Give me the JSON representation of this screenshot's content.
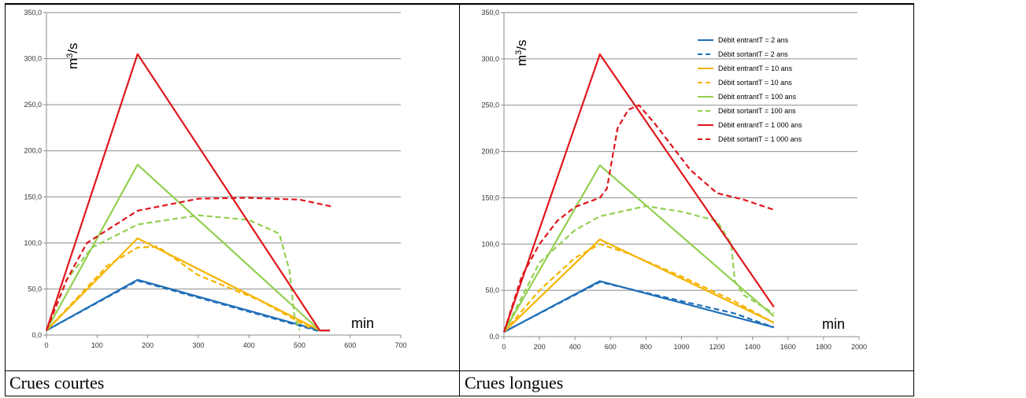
{
  "panels": [
    {
      "caption": "Crues courtes"
    },
    {
      "caption": "Crues longues"
    }
  ],
  "chart_data": [
    {
      "type": "line",
      "unit_label": "m3/s",
      "unit_base": "m",
      "unit_exp": "3",
      "unit_suffix": "/s",
      "x_unit_label": "min",
      "xlim": [
        0,
        700
      ],
      "ylim": [
        0,
        350
      ],
      "xticks": [
        0,
        100,
        200,
        300,
        400,
        500,
        600,
        700
      ],
      "yticks": [
        0.0,
        50.0,
        100.0,
        150.0,
        200.0,
        250.0,
        300.0,
        350.0
      ],
      "ytick_labels": [
        "0,0",
        "50,0",
        "100,0",
        "150,0",
        "200,0",
        "250,0",
        "300,0",
        "350,0"
      ],
      "grid": "horizontal",
      "series": [
        {
          "color": "#1f6fb8",
          "dash": false,
          "points": [
            [
              0,
              5
            ],
            [
              180,
              60
            ],
            [
              540,
              5
            ],
            [
              560,
              5
            ]
          ]
        },
        {
          "color": "#1f6fb8",
          "dash": true,
          "points": [
            [
              0,
              5
            ],
            [
              180,
              59
            ],
            [
              540,
              4
            ]
          ]
        },
        {
          "color": "#f5b400",
          "dash": false,
          "points": [
            [
              0,
              5
            ],
            [
              180,
              105
            ],
            [
              540,
              5
            ]
          ]
        },
        {
          "color": "#f5b400",
          "dash": true,
          "points": [
            [
              0,
              5
            ],
            [
              60,
              40
            ],
            [
              120,
              75
            ],
            [
              180,
              95
            ],
            [
              220,
              96
            ],
            [
              300,
              65
            ],
            [
              420,
              38
            ],
            [
              520,
              8
            ]
          ]
        },
        {
          "color": "#92d050",
          "dash": false,
          "points": [
            [
              0,
              5
            ],
            [
              180,
              185
            ],
            [
              540,
              5
            ]
          ]
        },
        {
          "color": "#92d050",
          "dash": true,
          "points": [
            [
              0,
              5
            ],
            [
              40,
              60
            ],
            [
              90,
              95
            ],
            [
              180,
              120
            ],
            [
              300,
              130
            ],
            [
              400,
              125
            ],
            [
              460,
              110
            ],
            [
              480,
              70
            ],
            [
              490,
              20
            ],
            [
              500,
              5
            ]
          ]
        },
        {
          "color": "#e0161b",
          "dash": false,
          "points": [
            [
              0,
              5
            ],
            [
              180,
              305
            ],
            [
              540,
              5
            ],
            [
              560,
              5
            ]
          ]
        },
        {
          "color": "#e0161b",
          "dash": true,
          "points": [
            [
              0,
              5
            ],
            [
              40,
              60
            ],
            [
              80,
              100
            ],
            [
              180,
              135
            ],
            [
              300,
              148
            ],
            [
              400,
              149
            ],
            [
              500,
              147
            ],
            [
              560,
              140
            ],
            [
              560,
              137
            ]
          ]
        }
      ]
    },
    {
      "type": "line",
      "unit_label": "m3/s",
      "unit_base": "m",
      "unit_exp": "3",
      "unit_suffix": "/s",
      "x_unit_label": "min",
      "xlim": [
        0,
        2000
      ],
      "ylim": [
        0,
        350
      ],
      "xticks": [
        0,
        200,
        400,
        600,
        800,
        1000,
        1200,
        1400,
        1600,
        1800,
        2000
      ],
      "yticks": [
        0.0,
        50.0,
        100.0,
        150.0,
        200.0,
        250.0,
        300.0,
        350.0
      ],
      "ytick_labels": [
        "0,0",
        "50,0",
        "100,0",
        "150,0",
        "200,0",
        "250,0",
        "300,0",
        "350,0"
      ],
      "grid": "horizontal",
      "legend": "top-right",
      "series": [
        {
          "name": "Débit entrantT = 2 ans",
          "color": "#1f6fb8",
          "dash": false,
          "points": [
            [
              0,
              5
            ],
            [
              540,
              60
            ],
            [
              1520,
              10
            ]
          ]
        },
        {
          "name": "Débit sortantT = 2 ans",
          "color": "#1f6fb8",
          "dash": true,
          "points": [
            [
              0,
              5
            ],
            [
              540,
              59
            ],
            [
              1300,
              25
            ],
            [
              1520,
              10
            ]
          ]
        },
        {
          "name": "Débit entrantT = 10 ans",
          "color": "#f5b400",
          "dash": false,
          "points": [
            [
              0,
              5
            ],
            [
              540,
              105
            ],
            [
              1520,
              15
            ]
          ]
        },
        {
          "name": "Débit sortantT = 10 ans",
          "color": "#f5b400",
          "dash": true,
          "points": [
            [
              0,
              5
            ],
            [
              200,
              50
            ],
            [
              400,
              85
            ],
            [
              540,
              100
            ],
            [
              700,
              90
            ],
            [
              1000,
              65
            ],
            [
              1300,
              38
            ],
            [
              1520,
              15
            ]
          ]
        },
        {
          "name": "Débit entrantT = 100 ans",
          "color": "#92d050",
          "dash": false,
          "points": [
            [
              0,
              5
            ],
            [
              540,
              185
            ],
            [
              1520,
              22
            ]
          ]
        },
        {
          "name": "Débit sortantT = 100 ans",
          "color": "#92d050",
          "dash": true,
          "points": [
            [
              0,
              5
            ],
            [
              200,
              80
            ],
            [
              400,
              115
            ],
            [
              540,
              130
            ],
            [
              800,
              141
            ],
            [
              1000,
              135
            ],
            [
              1200,
              125
            ],
            [
              1280,
              100
            ],
            [
              1300,
              60
            ],
            [
              1350,
              45
            ],
            [
              1520,
              25
            ]
          ]
        },
        {
          "name": "Débit entrantT = 1 000 ans",
          "color": "#e0161b",
          "dash": false,
          "points": [
            [
              0,
              5
            ],
            [
              540,
              305
            ],
            [
              1520,
              32
            ]
          ]
        },
        {
          "name": "Débit sortantT = 1 000 ans",
          "color": "#e0161b",
          "dash": true,
          "points": [
            [
              0,
              5
            ],
            [
              100,
              65
            ],
            [
              200,
              100
            ],
            [
              300,
              125
            ],
            [
              400,
              140
            ],
            [
              540,
              150
            ],
            [
              580,
              160
            ],
            [
              640,
              225
            ],
            [
              700,
              245
            ],
            [
              760,
              250
            ],
            [
              850,
              230
            ],
            [
              950,
              205
            ],
            [
              1050,
              180
            ],
            [
              1200,
              155
            ],
            [
              1350,
              148
            ],
            [
              1520,
              137
            ]
          ]
        }
      ]
    }
  ]
}
